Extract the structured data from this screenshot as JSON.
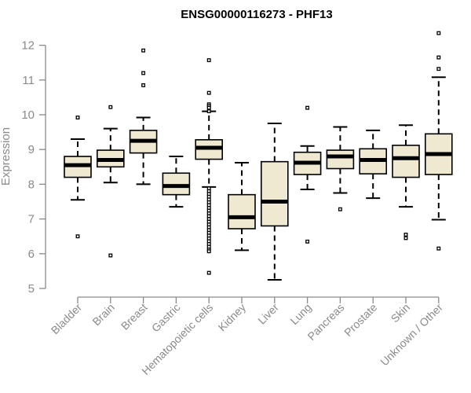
{
  "chart_data": {
    "type": "box",
    "title": "ENSG00000116273 - PHF13",
    "xlabel": "",
    "ylabel": "Expression",
    "ylim": [
      5,
      12.3
    ],
    "yticks": [
      5,
      6,
      7,
      8,
      9,
      10,
      11,
      12
    ],
    "grid": false,
    "colors": {
      "box_fill": "#efe9d2",
      "stroke": "#000000",
      "median": "#000000",
      "axis": "#8a8a8a"
    },
    "categories": [
      "Bladder",
      "Brain",
      "Breast",
      "Gastric",
      "Hematopoietic cells",
      "Kidney",
      "Liver",
      "Lung",
      "Pancreas",
      "Prostate",
      "Skin",
      "Unknown / Other"
    ],
    "boxes": [
      {
        "category": "Bladder",
        "whisker_low": 7.55,
        "q1": 8.2,
        "median": 8.55,
        "q3": 8.8,
        "whisker_high": 9.3,
        "outliers": [
          9.92,
          6.5
        ]
      },
      {
        "category": "Brain",
        "whisker_low": 8.05,
        "q1": 8.5,
        "median": 8.7,
        "q3": 8.98,
        "whisker_high": 9.6,
        "outliers": [
          10.22,
          5.95
        ]
      },
      {
        "category": "Breast",
        "whisker_low": 8.0,
        "q1": 8.9,
        "median": 9.25,
        "q3": 9.55,
        "whisker_high": 9.92,
        "outliers": [
          11.85,
          11.2,
          10.85
        ]
      },
      {
        "category": "Gastric",
        "whisker_low": 7.35,
        "q1": 7.7,
        "median": 7.95,
        "q3": 8.32,
        "whisker_high": 8.8,
        "outliers": []
      },
      {
        "category": "Hematopoietic cells",
        "whisker_low": 7.92,
        "q1": 8.72,
        "median": 9.05,
        "q3": 9.28,
        "whisker_high": 10.1,
        "outliers": [
          11.57,
          10.63,
          10.3,
          10.25,
          10.2,
          10.1,
          7.88,
          7.8,
          7.72,
          7.64,
          7.56,
          7.48,
          7.4,
          7.32,
          7.24,
          7.16,
          7.08,
          7.0,
          6.92,
          6.84,
          6.76,
          6.68,
          6.6,
          6.52,
          6.44,
          6.36,
          6.28,
          6.2,
          6.12,
          6.07,
          5.45
        ]
      },
      {
        "category": "Kidney",
        "whisker_low": 6.1,
        "q1": 6.72,
        "median": 7.05,
        "q3": 7.7,
        "whisker_high": 8.62,
        "outliers": []
      },
      {
        "category": "Liver",
        "whisker_low": 5.25,
        "q1": 6.8,
        "median": 7.5,
        "q3": 8.65,
        "whisker_high": 9.75,
        "outliers": []
      },
      {
        "category": "Lung",
        "whisker_low": 7.85,
        "q1": 8.28,
        "median": 8.62,
        "q3": 8.92,
        "whisker_high": 9.1,
        "outliers": [
          10.2,
          6.35
        ]
      },
      {
        "category": "Pancreas",
        "whisker_low": 7.75,
        "q1": 8.45,
        "median": 8.8,
        "q3": 8.98,
        "whisker_high": 9.65,
        "outliers": [
          7.28
        ]
      },
      {
        "category": "Prostate",
        "whisker_low": 7.6,
        "q1": 8.3,
        "median": 8.7,
        "q3": 9.02,
        "whisker_high": 9.55,
        "outliers": []
      },
      {
        "category": "Skin",
        "whisker_low": 7.35,
        "q1": 8.2,
        "median": 8.75,
        "q3": 9.12,
        "whisker_high": 9.7,
        "outliers": [
          6.55,
          6.45
        ]
      },
      {
        "category": "Unknown / Other",
        "whisker_low": 6.98,
        "q1": 8.28,
        "median": 8.87,
        "q3": 9.45,
        "whisker_high": 11.08,
        "outliers": [
          12.35,
          11.65,
          11.32,
          6.15
        ]
      }
    ]
  }
}
